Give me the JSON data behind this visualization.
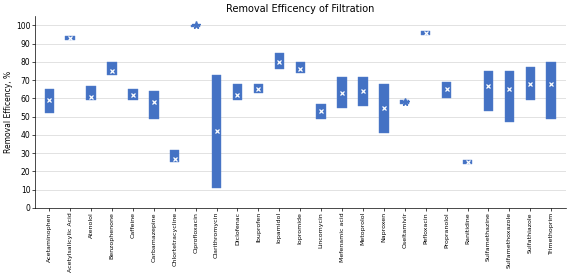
{
  "title": "Removal Efficency of Filtration",
  "ylabel": "Removal Efficency, %",
  "ylim": [
    0,
    105
  ],
  "yticks": [
    0,
    10,
    20,
    30,
    40,
    50,
    60,
    70,
    80,
    90,
    100
  ],
  "bg_color": "#ffffff",
  "box_color": "#4472C4",
  "categories": [
    "Acetaminophen",
    "Acetylsalicylic Acid",
    "Atenolol",
    "Benzophenone",
    "Caffeine",
    "Carbamazepine",
    "Chlortetracycline",
    "Ciprofloxacin",
    "Clarithromycin",
    "Diclofenac",
    "Ibuprofen",
    "Iopamidol",
    "Iopromide",
    "Lincomycin",
    "Mefenamic acid",
    "Metoprolol",
    "Naproxen",
    "Oseltamivir",
    "Pefloxacin",
    "Propranolol",
    "Ranitidine",
    "Sulfamethazine",
    "Sulfamethoxazole",
    "Sulfathiazole",
    "Trimethoprim"
  ],
  "boxes": [
    {
      "q1": 52,
      "q3": 65,
      "mean": 59
    },
    {
      "q1": 92,
      "q3": 94,
      "mean": 93
    },
    {
      "q1": 59,
      "q3": 67,
      "mean": 61
    },
    {
      "q1": 73,
      "q3": 80,
      "mean": 75
    },
    {
      "q1": 59,
      "q3": 65,
      "mean": 62
    },
    {
      "q1": 49,
      "q3": 64,
      "mean": 58
    },
    {
      "q1": 25,
      "q3": 32,
      "mean": 27
    },
    {
      "q1": 99,
      "q3": 100,
      "mean": 100
    },
    {
      "q1": 11,
      "q3": 73,
      "mean": 42
    },
    {
      "q1": 59,
      "q3": 68,
      "mean": 62
    },
    {
      "q1": 63,
      "q3": 68,
      "mean": 65
    },
    {
      "q1": 76,
      "q3": 85,
      "mean": 80
    },
    {
      "q1": 74,
      "q3": 80,
      "mean": 76
    },
    {
      "q1": 49,
      "q3": 57,
      "mean": 53
    },
    {
      "q1": 55,
      "q3": 72,
      "mean": 63
    },
    {
      "q1": 56,
      "q3": 72,
      "mean": 64
    },
    {
      "q1": 41,
      "q3": 68,
      "mean": 55
    },
    {
      "q1": 57,
      "q3": 59,
      "mean": 58
    },
    {
      "q1": 95,
      "q3": 97,
      "mean": 96
    },
    {
      "q1": 60,
      "q3": 69,
      "mean": 65
    },
    {
      "q1": 24,
      "q3": 26,
      "mean": 25
    },
    {
      "q1": 53,
      "q3": 75,
      "mean": 67
    },
    {
      "q1": 47,
      "q3": 75,
      "mean": 65
    },
    {
      "q1": 59,
      "q3": 77,
      "mean": 68
    },
    {
      "q1": 49,
      "q3": 80,
      "mean": 68
    }
  ],
  "star_outliers": [
    {
      "index": 7,
      "value": 100
    },
    {
      "index": 17,
      "value": 58
    }
  ]
}
